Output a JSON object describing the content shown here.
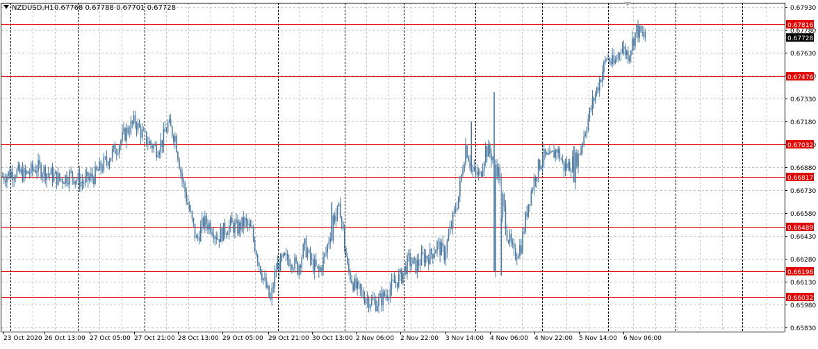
{
  "header": {
    "symbol": "NZDUSD,H1",
    "ohlc": "0.67768 0.67788 0.67701 0.67728"
  },
  "colors": {
    "candle": "#4a78a0",
    "level_line": "#e00000",
    "level_label_bg": "#e00000",
    "current_label_bg": "#000000",
    "grid": "#c0c0c0",
    "vline": "#000000"
  },
  "chart_data": {
    "type": "candlestick",
    "ylim": [
      0.6577,
      0.6798
    ],
    "grid": true,
    "price_ticks": [
      "0.67930",
      "0.67780",
      "0.67630",
      "0.67480",
      "0.67330",
      "0.67180",
      "0.67030",
      "0.66880",
      "0.66730",
      "0.66580",
      "0.66430",
      "0.66280",
      "0.66130",
      "0.65980",
      "0.65830"
    ],
    "date_labels": [
      "23 Oct 2020",
      "26 Oct 13:00",
      "27 Oct 05:00",
      "27 Oct 21:00",
      "28 Oct 13:00",
      "29 Oct 05:00",
      "29 Oct 21:00",
      "30 Oct 13:00",
      "2 Nov 06:00",
      "2 Nov 22:00",
      "3 Nov 14:00",
      "4 Nov 06:00",
      "4 Nov 22:00",
      "5 Nov 14:00",
      "6 Nov 06:00"
    ],
    "levels": [
      "0.67816",
      "0.67476",
      "0.67032",
      "0.66817",
      "0.66489",
      "0.66196",
      "0.66032"
    ],
    "current_price": "0.67728",
    "price_path": [
      [
        0,
        0.6682
      ],
      [
        8,
        0.6685
      ],
      [
        16,
        0.6683
      ],
      [
        24,
        0.6688
      ],
      [
        32,
        0.6684
      ],
      [
        40,
        0.668
      ],
      [
        48,
        0.6683
      ],
      [
        56,
        0.6678
      ],
      [
        64,
        0.6682
      ],
      [
        72,
        0.6691
      ],
      [
        80,
        0.6701
      ],
      [
        88,
        0.6713
      ],
      [
        93,
        0.6718
      ],
      [
        99,
        0.6708
      ],
      [
        104,
        0.6703
      ],
      [
        108,
        0.67
      ],
      [
        112,
        0.6705
      ],
      [
        116,
        0.6716
      ],
      [
        121,
        0.6708
      ],
      [
        126,
        0.668
      ],
      [
        131,
        0.666
      ],
      [
        136,
        0.664
      ],
      [
        141,
        0.6652
      ],
      [
        146,
        0.665
      ],
      [
        151,
        0.6642
      ],
      [
        156,
        0.6647
      ],
      [
        160,
        0.665
      ],
      [
        165,
        0.6648
      ],
      [
        170,
        0.6652
      ],
      [
        175,
        0.6645
      ],
      [
        180,
        0.6625
      ],
      [
        184,
        0.6612
      ],
      [
        188,
        0.66
      ],
      [
        192,
        0.6622
      ],
      [
        197,
        0.6627
      ],
      [
        202,
        0.6628
      ],
      [
        207,
        0.6622
      ],
      [
        212,
        0.6636
      ],
      [
        217,
        0.6625
      ],
      [
        222,
        0.6619
      ],
      [
        227,
        0.6632
      ],
      [
        232,
        0.6655
      ],
      [
        237,
        0.666
      ],
      [
        242,
        0.6622
      ],
      [
        247,
        0.661
      ],
      [
        252,
        0.6605
      ],
      [
        257,
        0.6601
      ],
      [
        262,
        0.6599
      ],
      [
        266,
        0.6602
      ],
      [
        270,
        0.6606
      ],
      [
        275,
        0.6612
      ],
      [
        280,
        0.6617
      ],
      [
        285,
        0.6627
      ],
      [
        290,
        0.6623
      ],
      [
        295,
        0.6629
      ],
      [
        300,
        0.663
      ],
      [
        305,
        0.6637
      ],
      [
        310,
        0.6631
      ],
      [
        315,
        0.665
      ],
      [
        320,
        0.6669
      ],
      [
        325,
        0.6702
      ],
      [
        330,
        0.6685
      ],
      [
        335,
        0.6682
      ],
      [
        339,
        0.67
      ],
      [
        344,
        0.6695
      ],
      [
        349,
        0.6682
      ],
      [
        354,
        0.6645
      ],
      [
        359,
        0.663
      ],
      [
        364,
        0.6637
      ],
      [
        369,
        0.6665
      ],
      [
        374,
        0.6683
      ],
      [
        379,
        0.6695
      ],
      [
        384,
        0.6693
      ],
      [
        389,
        0.67
      ],
      [
        394,
        0.6688
      ],
      [
        399,
        0.669
      ],
      [
        404,
        0.6695
      ],
      [
        409,
        0.6713
      ],
      [
        414,
        0.673
      ],
      [
        419,
        0.6745
      ],
      [
        424,
        0.676
      ],
      [
        429,
        0.6755
      ],
      [
        434,
        0.6767
      ],
      [
        439,
        0.6762
      ],
      [
        442,
        0.677
      ],
      [
        445,
        0.6778
      ],
      [
        448,
        0.6775
      ],
      [
        451,
        0.6773
      ]
    ],
    "spikes": [
      [
        345,
        0.6737,
        0.662
      ],
      [
        350,
        0.6617,
        0.6655
      ],
      [
        329,
        0.6718,
        0.6685
      ],
      [
        231,
        0.6665,
        0.664
      ],
      [
        401,
        0.6702,
        0.6678
      ]
    ]
  }
}
